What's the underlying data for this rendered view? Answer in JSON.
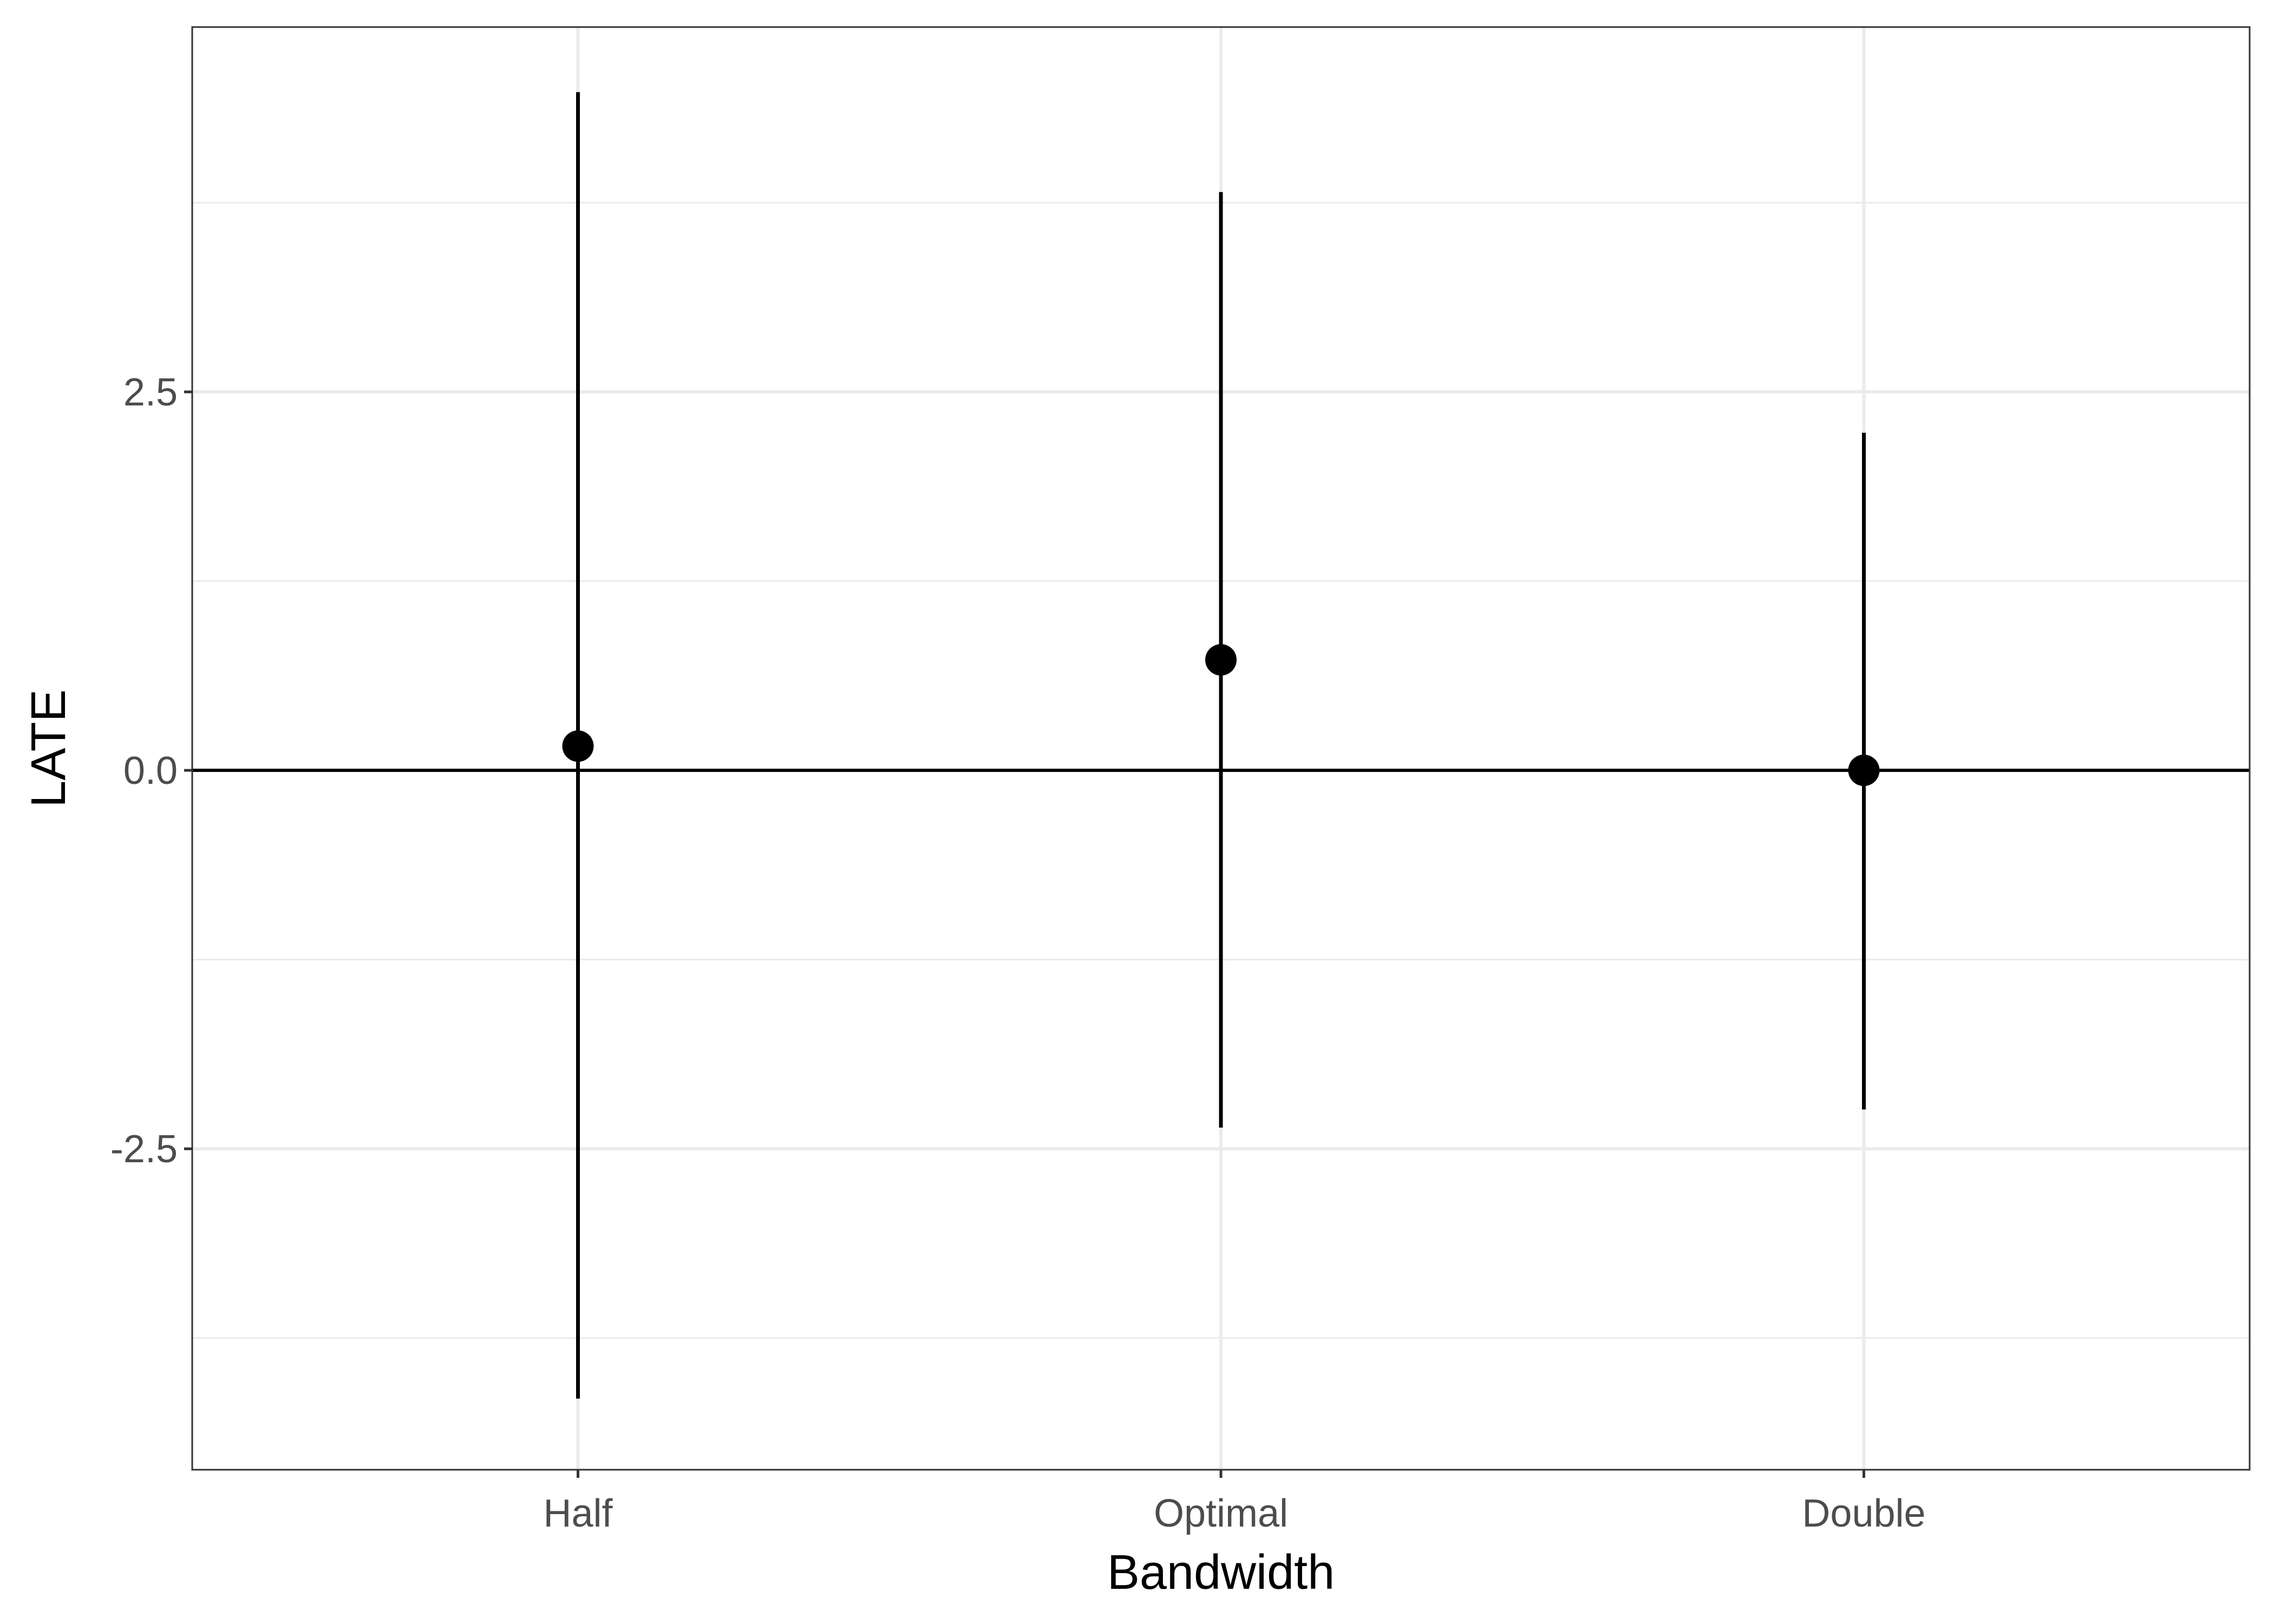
{
  "chart_data": {
    "type": "scatter",
    "subtype": "pointrange",
    "title": "",
    "xlabel": "Bandwidth",
    "ylabel": "LATE",
    "categories": [
      "Half",
      "Optimal",
      "Double"
    ],
    "estimates": [
      0.16,
      0.73,
      0.0
    ],
    "ci_lower": [
      -4.15,
      -2.36,
      -2.24
    ],
    "ci_upper": [
      4.48,
      3.82,
      2.23
    ],
    "ylim": [
      -4.62,
      4.91
    ],
    "yticks": [
      -2.5,
      0.0,
      2.5
    ],
    "ytick_labels": [
      "-2.5",
      "0.0",
      "2.5"
    ],
    "reference_line_y": 0,
    "grid": true,
    "legend": "none",
    "colors": {
      "points": "#000000",
      "errorbars": "#000000",
      "grid": "#ebebeb",
      "panel_border": "#333333"
    }
  }
}
